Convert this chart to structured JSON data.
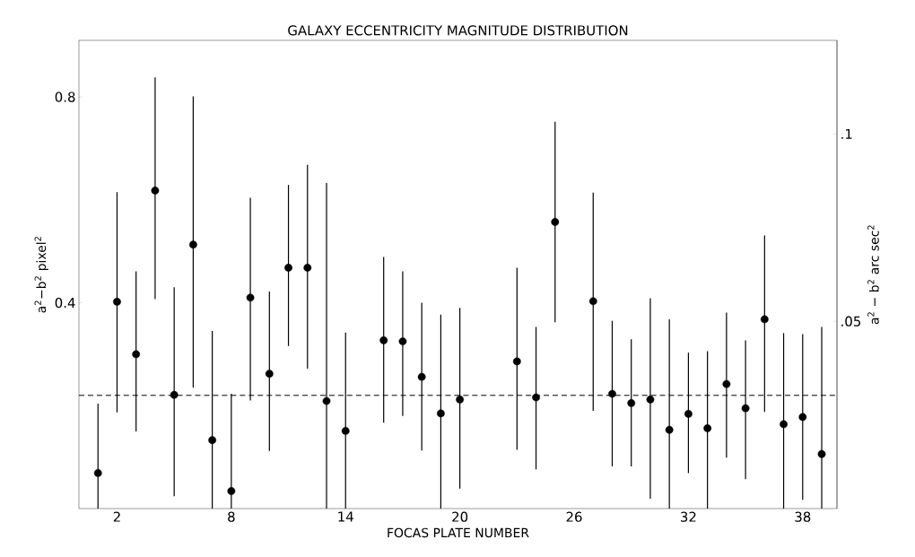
{
  "chart_data": {
    "type": "scatter",
    "title": "GALAXY ECCENTRICITY MAGNITUDE DISTRIBUTION",
    "xlabel": "FOCAS PLATE NUMBER",
    "ylabel": "a$^{2}$−b$^{2}$ pixel$^{2}$",
    "y2label": "a$^{2}$ − b$^{2}$ arc sec$^{2}$",
    "x": [
      1,
      2,
      3,
      4,
      5,
      6,
      7,
      8,
      9,
      10,
      11,
      12,
      13,
      14,
      16,
      17,
      18,
      19,
      20,
      23,
      24,
      25,
      27,
      28,
      29,
      30,
      31,
      32,
      33,
      34,
      35,
      36,
      37,
      38,
      39
    ],
    "values": [
      0.069,
      0.402,
      0.3,
      0.618,
      0.221,
      0.513,
      0.133,
      0.034,
      0.41,
      0.262,
      0.468,
      0.468,
      0.209,
      0.151,
      0.327,
      0.325,
      0.256,
      0.185,
      0.212,
      0.286,
      0.216,
      0.557,
      0.403,
      0.223,
      0.205,
      0.212,
      0.153,
      0.184,
      0.156,
      0.242,
      0.195,
      0.368,
      0.164,
      0.178,
      0.106
    ],
    "errors": [
      [
        0,
        0.204
      ],
      [
        0.187,
        0.615
      ],
      [
        0.15,
        0.461
      ],
      [
        0.407,
        0.838
      ],
      [
        0.024,
        0.43
      ],
      [
        0.235,
        0.801
      ],
      [
        0,
        0.345
      ],
      [
        0,
        0.223
      ],
      [
        0.21,
        0.604
      ],
      [
        0.112,
        0.422
      ],
      [
        0.316,
        0.629
      ],
      [
        0.272,
        0.668
      ],
      [
        0,
        0.633
      ],
      [
        0,
        0.342
      ],
      [
        0.167,
        0.489
      ],
      [
        0.18,
        0.461
      ],
      [
        0.113,
        0.4
      ],
      [
        0,
        0.377
      ],
      [
        0.039,
        0.39
      ],
      [
        0.114,
        0.468
      ],
      [
        0.076,
        0.353
      ],
      [
        0.362,
        0.752
      ],
      [
        0.19,
        0.614
      ],
      [
        0.082,
        0.365
      ],
      [
        0.082,
        0.329
      ],
      [
        0.019,
        0.409
      ],
      [
        0,
        0.368
      ],
      [
        0.069,
        0.303
      ],
      [
        0,
        0.306
      ],
      [
        0.099,
        0.381
      ],
      [
        0.057,
        0.327
      ],
      [
        0.188,
        0.531
      ],
      [
        0,
        0.341
      ],
      [
        0.017,
        0.339
      ],
      [
        0,
        0.353
      ]
    ],
    "color": "#000000",
    "marker": "circle",
    "xlim": [
      0,
      39.8
    ],
    "xticks": [
      2,
      8,
      14,
      20,
      26,
      32,
      38
    ],
    "ylim": [
      0,
      0.91
    ],
    "yticks": [
      {
        "value": 0.4,
        "label": "0.4"
      },
      {
        "value": 0.8,
        "label": "0.8"
      }
    ],
    "y2lim": [
      0,
      0.125
    ],
    "y2ticks": [
      {
        "value": 0.05,
        "label": ".05"
      },
      {
        "value": 0.1,
        "label": ".1"
      }
    ],
    "ref_lines": [
      {
        "axis": "y",
        "value": 0.22,
        "line_style": "dashed"
      }
    ]
  }
}
